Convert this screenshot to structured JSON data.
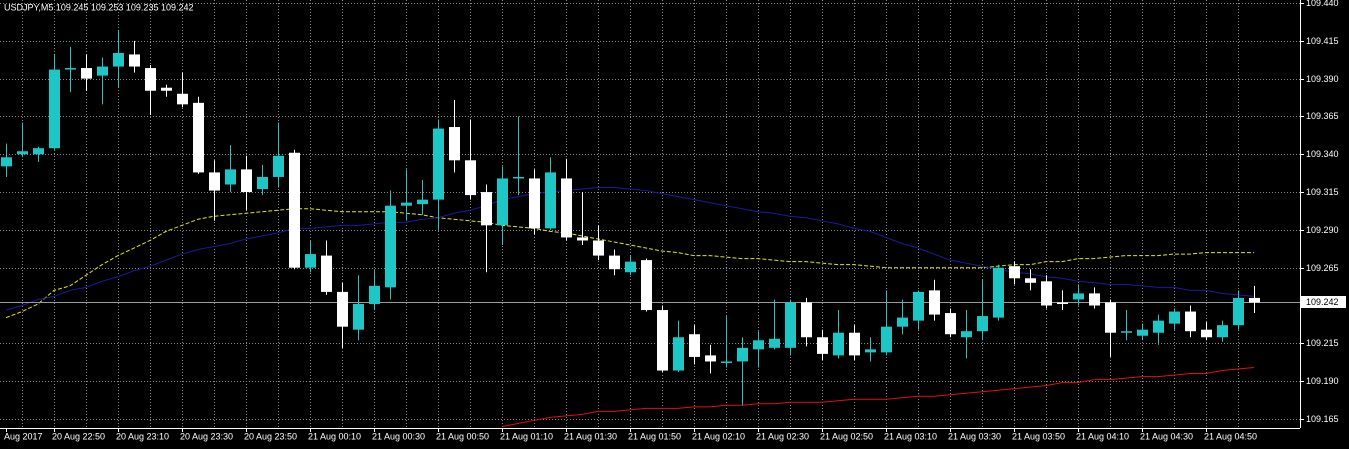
{
  "chart_data": {
    "type": "candlestick",
    "title": "USDJPY,M5  109.245 109.253 109.235 109.242",
    "categories": [
      "Aug 2017",
      null,
      null,
      "20 Aug 22:50",
      null,
      null,
      null,
      "20 Aug 23:10",
      null,
      null,
      null,
      "20 Aug 23:30",
      null,
      null,
      null,
      "20 Aug 23:50",
      null,
      null,
      null,
      "21 Aug 00:10",
      null,
      null,
      null,
      "21 Aug 00:30",
      null,
      null,
      null,
      "21 Aug 00:50",
      null,
      null,
      null,
      "21 Aug 01:10",
      null,
      null,
      null,
      "21 Aug 01:30",
      null,
      null,
      null,
      "21 Aug 01:50",
      null,
      null,
      null,
      "21 Aug 02:10",
      null,
      null,
      null,
      "21 Aug 02:30",
      null,
      null,
      null,
      "21 Aug 02:50",
      null,
      null,
      null,
      "21 Aug 03:10",
      null,
      null,
      null,
      "21 Aug 03:30",
      null,
      null,
      null,
      "21 Aug 03:50",
      null,
      null,
      null,
      "21 Aug 04:10",
      null,
      null,
      null,
      "21 Aug 04:30",
      null,
      null,
      null,
      "21 Aug 04:50",
      null,
      null,
      null
    ],
    "open": [
      109.332,
      109.34,
      109.34,
      109.344,
      109.396,
      109.397,
      109.392,
      109.398,
      109.406,
      109.397,
      109.384,
      109.38,
      109.374,
      109.328,
      109.32,
      109.33,
      109.317,
      109.325,
      109.341,
      109.265,
      109.273,
      109.249,
      109.224,
      109.241,
      109.252,
      109.306,
      109.307,
      109.31,
      109.358,
      109.336,
      109.315,
      109.293,
      109.324,
      109.324,
      109.291,
      109.324,
      109.285,
      109.283,
      109.273,
      109.262,
      109.27,
      109.237,
      109.197,
      109.221,
      109.207,
      109.202,
      109.203,
      109.211,
      109.212,
      109.212,
      109.242,
      109.219,
      109.207,
      109.222,
      109.209,
      109.209,
      109.226,
      109.23,
      109.25,
      109.235,
      109.219,
      109.223,
      109.232,
      109.266,
      109.258,
      109.256,
      109.242,
      109.244,
      109.248,
      109.242,
      109.222,
      109.22,
      109.222,
      109.228,
      109.236,
      109.224,
      109.219,
      109.227,
      109.245
    ],
    "high": [
      109.347,
      109.361,
      109.345,
      109.406,
      109.411,
      109.406,
      109.404,
      109.422,
      109.415,
      109.399,
      109.386,
      109.394,
      109.378,
      109.336,
      109.346,
      109.339,
      109.333,
      109.361,
      109.343,
      109.283,
      109.283,
      109.255,
      109.26,
      109.264,
      109.316,
      109.33,
      109.323,
      109.363,
      109.376,
      109.363,
      109.32,
      109.332,
      109.365,
      109.33,
      109.338,
      109.337,
      109.315,
      109.293,
      109.277,
      109.273,
      109.271,
      109.24,
      109.23,
      109.227,
      109.214,
      109.233,
      109.219,
      109.223,
      109.244,
      109.244,
      109.245,
      109.224,
      109.237,
      109.227,
      109.219,
      109.25,
      109.244,
      109.25,
      109.257,
      109.238,
      109.237,
      109.257,
      109.267,
      109.269,
      109.264,
      109.26,
      109.25,
      109.254,
      109.252,
      109.244,
      109.237,
      109.228,
      109.234,
      109.238,
      109.24,
      109.229,
      109.23,
      109.25,
      109.253
    ],
    "low": [
      109.325,
      109.338,
      109.335,
      109.343,
      109.381,
      109.382,
      109.373,
      109.384,
      109.394,
      109.366,
      109.378,
      109.371,
      109.327,
      109.296,
      109.315,
      109.303,
      109.313,
      109.318,
      109.264,
      109.262,
      109.247,
      109.212,
      109.217,
      109.237,
      109.244,
      109.296,
      109.3,
      109.29,
      109.328,
      109.31,
      109.262,
      109.28,
      109.313,
      109.287,
      109.29,
      109.283,
      109.28,
      109.27,
      109.26,
      109.26,
      109.236,
      109.196,
      109.196,
      109.201,
      109.195,
      109.199,
      109.174,
      109.199,
      109.211,
      109.207,
      109.213,
      109.204,
      109.205,
      109.204,
      109.203,
      109.207,
      109.221,
      109.224,
      109.23,
      109.219,
      109.205,
      109.217,
      109.23,
      109.254,
      109.25,
      109.238,
      109.237,
      109.24,
      109.238,
      109.206,
      109.217,
      109.217,
      109.214,
      109.224,
      109.219,
      109.217,
      109.216,
      109.224,
      109.235
    ],
    "close": [
      109.338,
      109.342,
      109.344,
      109.396,
      109.397,
      109.39,
      109.398,
      109.407,
      109.398,
      109.382,
      109.382,
      109.373,
      109.328,
      109.316,
      109.33,
      109.315,
      109.325,
      109.339,
      109.265,
      109.274,
      109.249,
      109.226,
      109.241,
      109.253,
      109.306,
      109.308,
      109.31,
      109.357,
      109.336,
      109.313,
      109.293,
      109.324,
      109.325,
      109.291,
      109.328,
      109.285,
      109.283,
      109.273,
      109.264,
      109.269,
      109.237,
      109.197,
      109.219,
      109.206,
      109.203,
      109.203,
      109.212,
      109.217,
      109.218,
      109.242,
      109.219,
      109.208,
      109.222,
      109.207,
      109.211,
      109.226,
      109.232,
      109.249,
      109.234,
      109.221,
      109.223,
      109.233,
      109.265,
      109.258,
      109.255,
      109.24,
      109.241,
      109.248,
      109.24,
      109.222,
      109.223,
      109.224,
      109.23,
      109.236,
      109.223,
      109.219,
      109.227,
      109.245,
      109.242
    ],
    "up_color": "#1fc6c6",
    "down_color": "#ffffff",
    "series": [
      {
        "color": "#e6e600",
        "dashed": true,
        "values": [
          109.232,
          109.236,
          109.241,
          109.25,
          109.253,
          109.26,
          109.267,
          109.273,
          109.278,
          109.283,
          109.289,
          109.293,
          109.297,
          109.299,
          109.3,
          109.301,
          109.302,
          109.303,
          109.304,
          109.304,
          109.303,
          109.302,
          109.302,
          109.302,
          109.302,
          109.301,
          109.3,
          109.298,
          109.297,
          109.296,
          109.295,
          109.293,
          109.292,
          109.291,
          109.289,
          109.288,
          109.286,
          109.284,
          109.282,
          109.28,
          109.278,
          109.276,
          109.275,
          109.273,
          109.273,
          109.272,
          109.271,
          109.271,
          109.27,
          109.269,
          109.269,
          109.268,
          109.267,
          109.267,
          109.266,
          109.265,
          109.265,
          109.265,
          109.265,
          109.265,
          109.265,
          109.265,
          109.266,
          109.267,
          109.267,
          109.269,
          109.269,
          109.271,
          109.271,
          109.272,
          109.273,
          109.273,
          109.273,
          109.274,
          109.274,
          109.275,
          109.275,
          109.275,
          109.275
        ]
      },
      {
        "color": "#1a1aa0",
        "dashed": false,
        "values": [
          109.237,
          109.24,
          109.244,
          109.246,
          109.25,
          109.252,
          109.256,
          109.259,
          109.263,
          109.266,
          109.27,
          109.274,
          109.277,
          109.279,
          109.281,
          109.284,
          109.286,
          109.288,
          109.291,
          109.291,
          109.292,
          109.293,
          109.293,
          109.294,
          109.295,
          109.295,
          109.297,
          109.298,
          109.301,
          109.303,
          109.306,
          109.31,
          109.312,
          109.314,
          109.315,
          109.316,
          109.317,
          109.318,
          109.318,
          109.317,
          109.316,
          109.314,
          109.312,
          109.31,
          109.308,
          109.306,
          109.304,
          109.302,
          109.301,
          109.299,
          109.298,
          109.296,
          109.294,
          109.291,
          109.289,
          109.285,
          109.281,
          109.278,
          109.274,
          109.27,
          109.268,
          109.266,
          109.264,
          109.262,
          109.261,
          109.259,
          109.258,
          109.256,
          109.255,
          109.254,
          109.254,
          109.253,
          109.252,
          109.252,
          109.25,
          109.25,
          109.248,
          109.247,
          109.246
        ]
      },
      {
        "color": "#e01010",
        "dashed": false,
        "values": [
          null,
          null,
          null,
          null,
          null,
          null,
          null,
          null,
          null,
          null,
          null,
          null,
          null,
          null,
          null,
          null,
          null,
          null,
          null,
          null,
          null,
          null,
          null,
          null,
          null,
          null,
          null,
          null,
          null,
          null,
          null,
          109.16,
          109.162,
          109.164,
          109.166,
          109.167,
          109.168,
          109.17,
          109.17,
          109.171,
          109.172,
          109.172,
          109.172,
          109.173,
          109.173,
          109.174,
          109.174,
          109.175,
          109.175,
          109.176,
          109.176,
          109.176,
          109.177,
          109.178,
          109.178,
          109.178,
          109.179,
          109.18,
          109.18,
          109.181,
          109.182,
          109.183,
          109.184,
          109.185,
          109.186,
          109.187,
          109.189,
          109.189,
          109.191,
          109.191,
          109.192,
          109.193,
          109.193,
          109.194,
          109.195,
          109.195,
          109.197,
          109.198,
          109.199
        ]
      }
    ],
    "current_price": 109.242,
    "ylim": [
      109.159,
      109.442
    ],
    "yticks": [
      {
        "value": 109.44,
        "label": "109.440"
      },
      109.415,
      {
        "value": 109.39,
        "label": "109.390"
      },
      109.365,
      {
        "value": 109.34,
        "label": "109.340"
      },
      109.315,
      {
        "value": 109.29,
        "label": "109.290"
      },
      109.265,
      109.215,
      {
        "value": 109.19,
        "label": "109.190"
      },
      109.165
    ],
    "grid": true
  }
}
